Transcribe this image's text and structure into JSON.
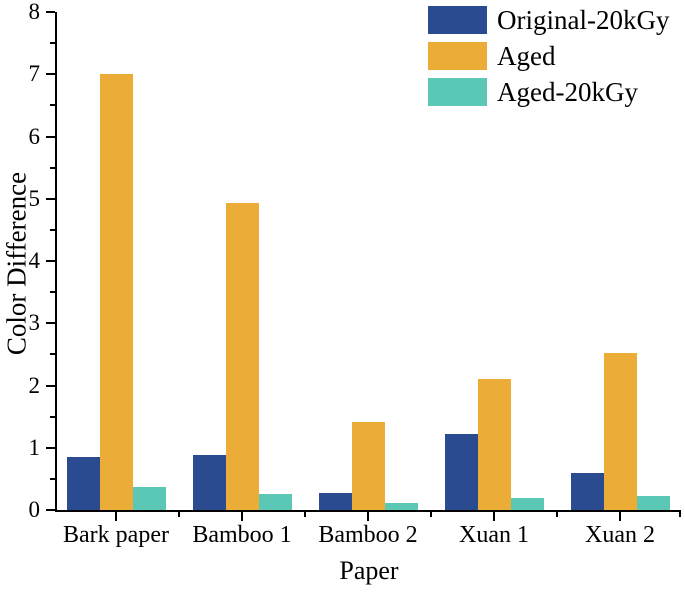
{
  "chart_data": {
    "type": "bar",
    "title": "",
    "xlabel": "Paper",
    "ylabel": "Color Difference",
    "ylim": [
      0,
      8
    ],
    "yticks": [
      0,
      1,
      2,
      3,
      4,
      5,
      6,
      7,
      8
    ],
    "yminor_step": 0.5,
    "grid": false,
    "legend_position": "top-right",
    "categories": [
      "Bark paper",
      "Bamboo 1",
      "Bamboo 2",
      "Xuan 1",
      "Xuan 2"
    ],
    "series": [
      {
        "name": "Original-20kGy",
        "color": "#2a4b8f",
        "values": [
          0.85,
          0.88,
          0.28,
          1.22,
          0.6
        ]
      },
      {
        "name": "Aged",
        "color": "#ecac38",
        "values": [
          7.0,
          4.93,
          1.42,
          2.1,
          2.53
        ]
      },
      {
        "name": "Aged-20kGy",
        "color": "#5ac8b5",
        "values": [
          0.37,
          0.25,
          0.12,
          0.19,
          0.22
        ]
      }
    ]
  }
}
